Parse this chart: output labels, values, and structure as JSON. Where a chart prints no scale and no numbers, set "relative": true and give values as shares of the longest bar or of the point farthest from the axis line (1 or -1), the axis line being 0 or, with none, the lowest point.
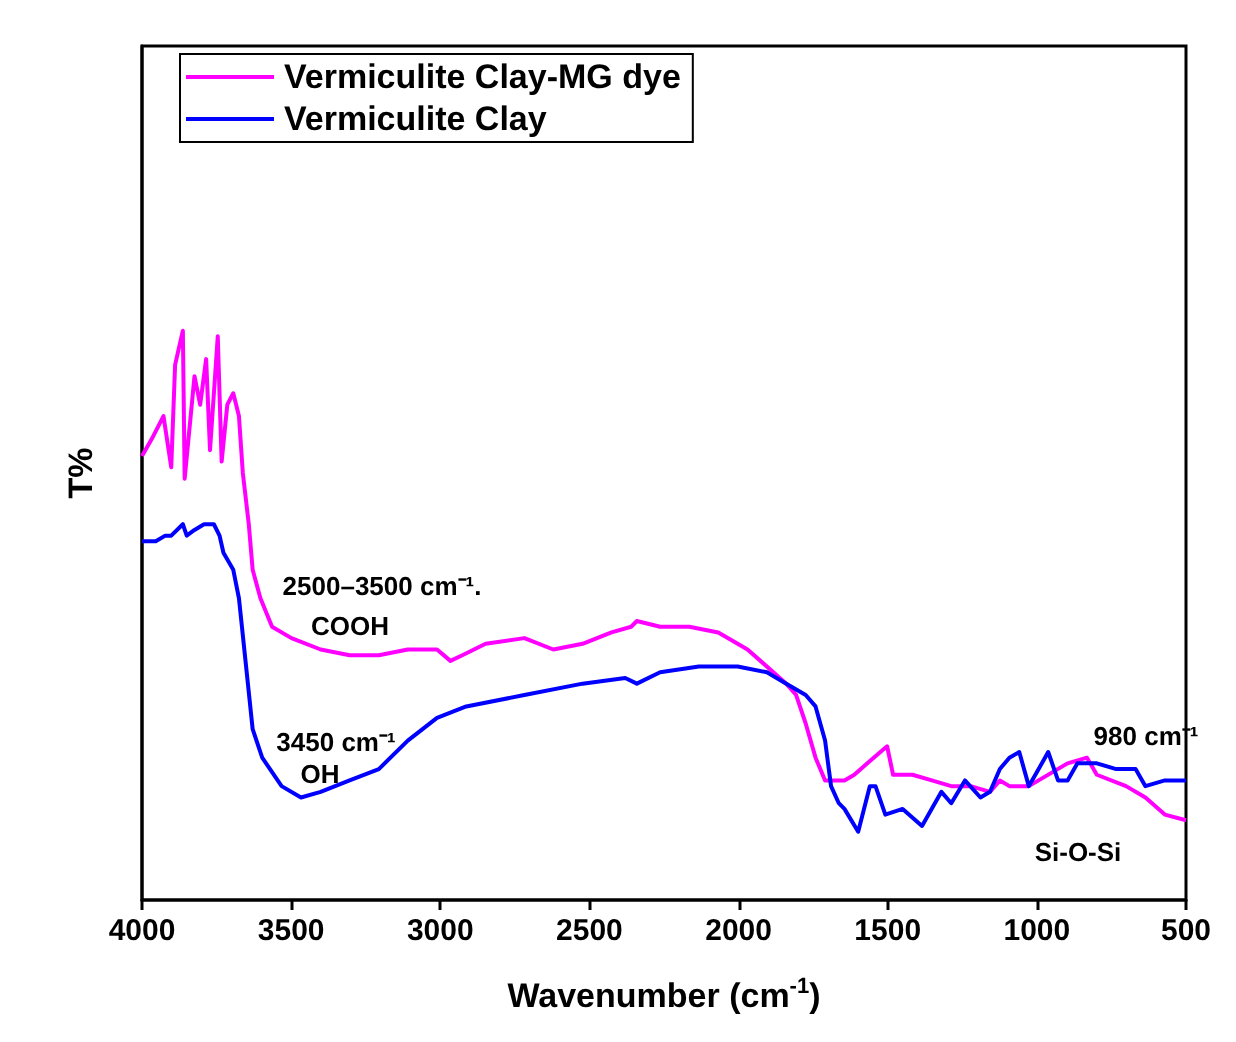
{
  "chart_data": {
    "type": "line",
    "relative": true,
    "xlabel": "Wavenumber (cm$^{-1}$)",
    "ylabel": "T%",
    "xlim": [
      4000,
      500
    ],
    "xticks": [
      4000,
      3500,
      3000,
      2500,
      2000,
      1500,
      1000,
      500
    ],
    "grid": false,
    "legend": "top left",
    "marker": "none",
    "line_style": "solid",
    "annotations": [
      "2500–3500 cm⁻¹.",
      "COOH",
      "3450 cm⁻¹",
      "OH",
      "980 cm⁻¹",
      "Si-O-Si"
    ],
    "series": [
      {
        "name": "Vermiculite Clay-MG dye",
        "color": "#ff00ff",
        "x": [
          4000,
          3967,
          3928,
          3902,
          3889,
          3863,
          3857,
          3824,
          3805,
          3785,
          3772,
          3759,
          3746,
          3733,
          3714,
          3694,
          3675,
          3662,
          3642,
          3629,
          3603,
          3564,
          3499,
          3401,
          3304,
          3206,
          3109,
          3011,
          2966,
          2926,
          2848,
          2718,
          2621,
          2523,
          2426,
          2360,
          2341,
          2263,
          2165,
          2068,
          1970,
          1840,
          1807,
          1775,
          1742,
          1710,
          1645,
          1612,
          1547,
          1502,
          1482,
          1417,
          1352,
          1287,
          1222,
          1157,
          1124,
          1092,
          1027,
          897,
          832,
          799,
          701,
          636,
          571,
          500
        ],
        "values": [
          0.78,
          0.81,
          0.85,
          0.76,
          0.94,
          1.0,
          0.74,
          0.92,
          0.87,
          0.95,
          0.79,
          0.89,
          0.99,
          0.77,
          0.87,
          0.89,
          0.85,
          0.75,
          0.66,
          0.58,
          0.53,
          0.48,
          0.46,
          0.44,
          0.43,
          0.43,
          0.44,
          0.44,
          0.42,
          0.43,
          0.45,
          0.46,
          0.44,
          0.45,
          0.47,
          0.48,
          0.49,
          0.48,
          0.48,
          0.47,
          0.44,
          0.38,
          0.36,
          0.31,
          0.25,
          0.21,
          0.21,
          0.22,
          0.25,
          0.27,
          0.22,
          0.22,
          0.21,
          0.2,
          0.2,
          0.19,
          0.21,
          0.2,
          0.2,
          0.24,
          0.25,
          0.22,
          0.2,
          0.18,
          0.15,
          0.14
        ]
      },
      {
        "name": "Vermiculite Clay",
        "color": "#0000ff",
        "x": [
          4000,
          3954,
          3922,
          3902,
          3863,
          3850,
          3824,
          3792,
          3759,
          3740,
          3727,
          3694,
          3675,
          3649,
          3629,
          3597,
          3532,
          3467,
          3401,
          3304,
          3206,
          3109,
          3011,
          2913,
          2718,
          2523,
          2380,
          2341,
          2263,
          2133,
          2003,
          1905,
          1840,
          1775,
          1742,
          1710,
          1690,
          1664,
          1645,
          1599,
          1560,
          1541,
          1508,
          1450,
          1385,
          1320,
          1287,
          1241,
          1189,
          1157,
          1124,
          1092,
          1059,
          1027,
          994,
          962,
          929,
          897,
          864,
          799,
          734,
          669,
          636,
          571,
          500
        ],
        "values": [
          0.63,
          0.63,
          0.64,
          0.64,
          0.66,
          0.64,
          0.65,
          0.66,
          0.66,
          0.64,
          0.61,
          0.58,
          0.53,
          0.4,
          0.3,
          0.25,
          0.2,
          0.18,
          0.19,
          0.21,
          0.23,
          0.28,
          0.32,
          0.34,
          0.36,
          0.38,
          0.39,
          0.38,
          0.4,
          0.41,
          0.41,
          0.4,
          0.38,
          0.36,
          0.34,
          0.28,
          0.2,
          0.17,
          0.16,
          0.12,
          0.2,
          0.2,
          0.15,
          0.16,
          0.13,
          0.19,
          0.17,
          0.21,
          0.18,
          0.19,
          0.23,
          0.25,
          0.26,
          0.2,
          0.23,
          0.26,
          0.21,
          0.21,
          0.24,
          0.24,
          0.23,
          0.23,
          0.2,
          0.21,
          0.21
        ]
      }
    ]
  }
}
